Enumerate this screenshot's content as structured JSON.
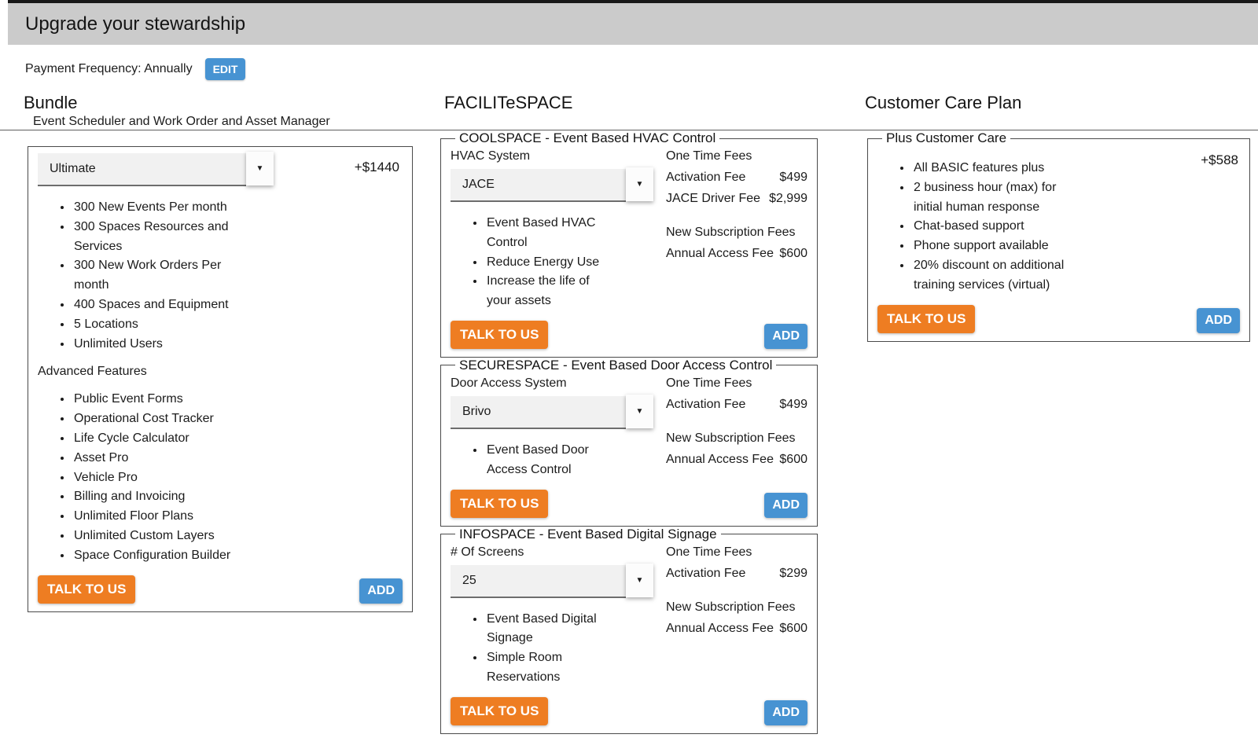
{
  "header": {
    "title": "Upgrade your stewardship"
  },
  "payment": {
    "label": "Payment Frequency: Annually",
    "edit_label": "EDIT"
  },
  "columns": {
    "bundle": {
      "title": "Bundle",
      "subtitle": "Event Scheduler and Work Order and Asset Manager",
      "card": {
        "selected_plan": "Ultimate",
        "price": "+$1440",
        "features": [
          "300 New Events Per month",
          "300 Spaces Resources and Services",
          "300 New Work Orders Per month",
          "400 Spaces and Equipment",
          "5 Locations",
          "Unlimited Users"
        ],
        "advanced_title": "Advanced Features",
        "advanced_features": [
          "Public Event Forms",
          "Operational Cost Tracker",
          "Life Cycle Calculator",
          "Asset Pro",
          "Vehicle Pro",
          "Billing and Invoicing",
          "Unlimited Floor Plans",
          "Unlimited Custom Layers",
          "Space Configuration Builder"
        ],
        "talk_label": "TALK TO US",
        "add_label": "ADD"
      }
    },
    "facilitespace": {
      "title": "FACILITeSPACE",
      "cards": [
        {
          "legend": "COOLSPACE - Event Based HVAC Control",
          "select_label": "HVAC System",
          "select_value": "JACE",
          "features": [
            "Event Based HVAC Control",
            "Reduce Energy Use",
            "Increase the life of your assets"
          ],
          "one_time_title": "One Time Fees",
          "one_time_fees": [
            {
              "label": "Activation Fee",
              "value": "$499"
            },
            {
              "label": "JACE Driver Fee",
              "value": "$2,999"
            }
          ],
          "subscription_title": "New Subscription Fees",
          "subscription_fees": [
            {
              "label": "Annual Access Fee",
              "value": "$600"
            }
          ],
          "talk_label": "TALK TO US",
          "add_label": "ADD"
        },
        {
          "legend": "SECURESPACE - Event Based Door Access Control",
          "select_label": "Door Access System",
          "select_value": "Brivo",
          "features": [
            "Event Based Door Access Control"
          ],
          "one_time_title": "One Time Fees",
          "one_time_fees": [
            {
              "label": "Activation Fee",
              "value": "$499"
            }
          ],
          "subscription_title": "New Subscription Fees",
          "subscription_fees": [
            {
              "label": "Annual Access Fee",
              "value": "$600"
            }
          ],
          "talk_label": "TALK TO US",
          "add_label": "ADD"
        },
        {
          "legend": "INFOSPACE - Event Based Digital Signage",
          "select_label": "# Of Screens",
          "select_value": "25",
          "features": [
            "Event Based Digital Signage",
            "Simple Room Reservations"
          ],
          "one_time_title": "One Time Fees",
          "one_time_fees": [
            {
              "label": "Activation Fee",
              "value": "$299"
            }
          ],
          "subscription_title": "New Subscription Fees",
          "subscription_fees": [
            {
              "label": "Annual Access Fee",
              "value": "$600"
            }
          ],
          "talk_label": "TALK TO US",
          "add_label": "ADD"
        }
      ]
    },
    "care": {
      "title": "Customer Care Plan",
      "card": {
        "legend": "Plus Customer Care",
        "price": "+$588",
        "features": [
          "All BASIC features plus",
          "2 business hour (max) for initial human response",
          "Chat-based support",
          "Phone support available",
          "20% discount on additional training services (virtual)"
        ],
        "talk_label": "TALK TO US",
        "add_label": "ADD"
      }
    }
  },
  "icons": {
    "dropdown_arrow": "▼"
  },
  "colors": {
    "accent_orange": "#ee7d22",
    "accent_blue": "#4793d2",
    "header_gray": "#cbcbcb"
  }
}
